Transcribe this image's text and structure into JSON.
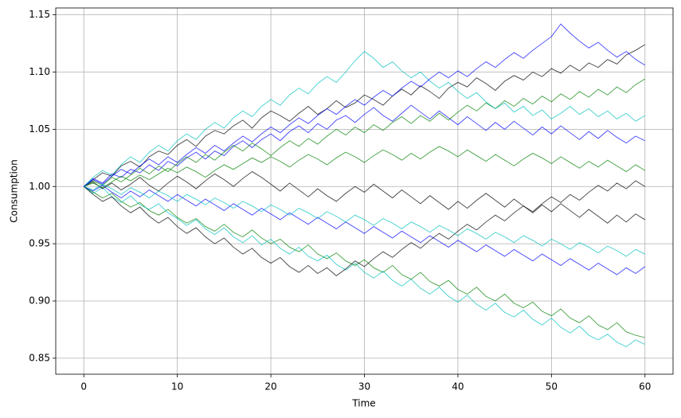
{
  "chart_data": {
    "type": "line",
    "xlabel": "Time",
    "ylabel": "Consumption",
    "x": [
      0,
      1,
      2,
      3,
      4,
      5,
      6,
      7,
      8,
      9,
      10,
      11,
      12,
      13,
      14,
      15,
      16,
      17,
      18,
      19,
      20,
      21,
      22,
      23,
      24,
      25,
      26,
      27,
      28,
      29,
      30,
      31,
      32,
      33,
      34,
      35,
      36,
      37,
      38,
      39,
      40,
      41,
      42,
      43,
      44,
      45,
      46,
      47,
      48,
      49,
      50,
      51,
      52,
      53,
      54,
      55,
      56,
      57,
      58,
      59,
      60
    ],
    "xlim": [
      -3,
      63
    ],
    "xticks": [
      0,
      10,
      20,
      30,
      40,
      50,
      60
    ],
    "ylim": [
      0.836,
      1.156
    ],
    "yticks": [
      0.85,
      {
        "value": 0.9,
        "label": "0.90"
      },
      0.95,
      {
        "value": 1.0,
        "label": "1.00"
      },
      1.05,
      {
        "value": 1.1,
        "label": "1.10"
      },
      1.15
    ],
    "grid": true,
    "series": [
      {
        "color": "#000000",
        "values": [
          1.0,
          1.006,
          1.012,
          1.009,
          1.018,
          1.022,
          1.017,
          1.026,
          1.031,
          1.028,
          1.036,
          1.041,
          1.035,
          1.044,
          1.049,
          1.046,
          1.053,
          1.058,
          1.051,
          1.06,
          1.066,
          1.062,
          1.057,
          1.064,
          1.07,
          1.063,
          1.068,
          1.075,
          1.069,
          1.073,
          1.08,
          1.076,
          1.071,
          1.079,
          1.085,
          1.08,
          1.088,
          1.083,
          1.077,
          1.086,
          1.091,
          1.087,
          1.095,
          1.09,
          1.084,
          1.092,
          1.097,
          1.093,
          1.1,
          1.096,
          1.103,
          1.099,
          1.106,
          1.101,
          1.108,
          1.104,
          1.111,
          1.107,
          1.115,
          1.119,
          1.124
        ]
      },
      {
        "color": "#008000",
        "values": [
          1.0,
          0.995,
          0.99,
          0.994,
          0.987,
          0.982,
          0.986,
          0.979,
          0.975,
          0.98,
          0.973,
          0.968,
          0.972,
          0.965,
          0.961,
          0.967,
          0.96,
          0.956,
          0.962,
          0.955,
          0.95,
          0.954,
          0.947,
          0.943,
          0.949,
          0.941,
          0.937,
          0.942,
          0.935,
          0.931,
          0.936,
          0.929,
          0.925,
          0.931,
          0.923,
          0.919,
          0.925,
          0.917,
          0.913,
          0.918,
          0.91,
          0.906,
          0.912,
          0.904,
          0.9,
          0.906,
          0.898,
          0.894,
          0.899,
          0.891,
          0.887,
          0.893,
          0.885,
          0.881,
          0.887,
          0.879,
          0.875,
          0.881,
          0.873,
          0.87,
          0.868
        ]
      },
      {
        "color": "#0000ff",
        "values": [
          1.0,
          1.007,
          1.003,
          1.011,
          1.008,
          1.015,
          1.012,
          1.019,
          1.014,
          1.022,
          1.018,
          1.025,
          1.03,
          1.024,
          1.031,
          1.027,
          1.035,
          1.04,
          1.034,
          1.041,
          1.046,
          1.04,
          1.048,
          1.053,
          1.047,
          1.055,
          1.05,
          1.058,
          1.062,
          1.056,
          1.063,
          1.069,
          1.062,
          1.057,
          1.064,
          1.071,
          1.065,
          1.059,
          1.066,
          1.06,
          1.054,
          1.061,
          1.055,
          1.049,
          1.056,
          1.05,
          1.057,
          1.051,
          1.045,
          1.052,
          1.046,
          1.053,
          1.047,
          1.041,
          1.048,
          1.042,
          1.049,
          1.043,
          1.038,
          1.044,
          1.04
        ]
      },
      {
        "color": "#00bfbf",
        "values": [
          1.0,
          0.994,
          0.999,
          0.991,
          0.986,
          0.992,
          0.984,
          0.98,
          0.985,
          0.977,
          0.972,
          0.966,
          0.971,
          0.963,
          0.958,
          0.964,
          0.956,
          0.951,
          0.957,
          0.949,
          0.954,
          0.946,
          0.941,
          0.947,
          0.939,
          0.935,
          0.94,
          0.932,
          0.927,
          0.933,
          0.925,
          0.92,
          0.926,
          0.918,
          0.913,
          0.919,
          0.911,
          0.906,
          0.912,
          0.904,
          0.899,
          0.905,
          0.897,
          0.892,
          0.898,
          0.89,
          0.886,
          0.892,
          0.884,
          0.879,
          0.885,
          0.877,
          0.872,
          0.878,
          0.87,
          0.866,
          0.871,
          0.864,
          0.86,
          0.866,
          0.862
        ]
      },
      {
        "color": "#000000",
        "values": [
          1.0,
          1.004,
          0.998,
          1.003,
          0.997,
          1.002,
          1.008,
          1.001,
          0.996,
          1.003,
          1.009,
          1.004,
          0.998,
          1.005,
          1.011,
          1.006,
          1.0,
          1.007,
          1.013,
          1.008,
          1.002,
          0.996,
          1.003,
          0.997,
          0.991,
          0.998,
          0.992,
          0.987,
          0.994,
          1.0,
          0.995,
          1.002,
          0.996,
          0.99,
          0.997,
          0.991,
          0.985,
          0.992,
          0.986,
          0.98,
          0.987,
          0.981,
          0.988,
          0.994,
          0.988,
          0.982,
          0.989,
          0.983,
          0.977,
          0.984,
          0.978,
          0.985,
          0.979,
          0.973,
          0.98,
          0.974,
          0.968,
          0.975,
          0.969,
          0.976,
          0.971
        ]
      },
      {
        "color": "#008000",
        "values": [
          1.0,
          1.005,
          1.001,
          1.008,
          1.004,
          1.01,
          1.016,
          1.011,
          1.018,
          1.013,
          1.02,
          1.026,
          1.021,
          1.028,
          1.023,
          1.03,
          1.036,
          1.031,
          1.038,
          1.033,
          1.027,
          1.034,
          1.04,
          1.035,
          1.042,
          1.037,
          1.044,
          1.05,
          1.045,
          1.052,
          1.047,
          1.054,
          1.049,
          1.056,
          1.061,
          1.055,
          1.062,
          1.057,
          1.064,
          1.058,
          1.065,
          1.071,
          1.066,
          1.073,
          1.068,
          1.075,
          1.07,
          1.077,
          1.072,
          1.079,
          1.074,
          1.081,
          1.076,
          1.083,
          1.078,
          1.085,
          1.08,
          1.087,
          1.082,
          1.089,
          1.094
        ]
      },
      {
        "color": "#0000ff",
        "values": [
          1.0,
          0.996,
          1.001,
          0.995,
          0.99,
          0.996,
          0.991,
          0.997,
          0.992,
          0.987,
          0.993,
          0.988,
          0.983,
          0.989,
          0.984,
          0.979,
          0.985,
          0.98,
          0.975,
          0.981,
          0.976,
          0.971,
          0.977,
          0.972,
          0.967,
          0.973,
          0.968,
          0.963,
          0.969,
          0.964,
          0.959,
          0.965,
          0.96,
          0.955,
          0.961,
          0.956,
          0.951,
          0.957,
          0.952,
          0.947,
          0.953,
          0.948,
          0.943,
          0.949,
          0.944,
          0.939,
          0.945,
          0.94,
          0.935,
          0.941,
          0.936,
          0.931,
          0.937,
          0.932,
          0.927,
          0.933,
          0.928,
          0.923,
          0.929,
          0.924,
          0.93
        ]
      },
      {
        "color": "#00bfbf",
        "values": [
          1.0,
          1.008,
          1.014,
          1.01,
          1.019,
          1.026,
          1.021,
          1.03,
          1.036,
          1.031,
          1.04,
          1.046,
          1.041,
          1.05,
          1.056,
          1.051,
          1.06,
          1.066,
          1.061,
          1.07,
          1.076,
          1.071,
          1.08,
          1.086,
          1.081,
          1.09,
          1.096,
          1.091,
          1.1,
          1.11,
          1.118,
          1.112,
          1.104,
          1.109,
          1.101,
          1.095,
          1.1,
          1.092,
          1.086,
          1.091,
          1.083,
          1.077,
          1.082,
          1.074,
          1.068,
          1.073,
          1.065,
          1.07,
          1.062,
          1.067,
          1.059,
          1.064,
          1.07,
          1.063,
          1.068,
          1.061,
          1.066,
          1.059,
          1.064,
          1.057,
          1.062
        ]
      },
      {
        "color": "#000000",
        "values": [
          1.0,
          0.993,
          0.987,
          0.991,
          0.983,
          0.977,
          0.982,
          0.974,
          0.968,
          0.973,
          0.965,
          0.959,
          0.964,
          0.956,
          0.95,
          0.955,
          0.947,
          0.941,
          0.946,
          0.938,
          0.933,
          0.938,
          0.93,
          0.925,
          0.931,
          0.924,
          0.929,
          0.922,
          0.928,
          0.935,
          0.93,
          0.937,
          0.943,
          0.938,
          0.945,
          0.951,
          0.946,
          0.953,
          0.959,
          0.954,
          0.961,
          0.967,
          0.962,
          0.969,
          0.975,
          0.97,
          0.977,
          0.983,
          0.978,
          0.985,
          0.991,
          0.986,
          0.993,
          0.988,
          0.995,
          1.001,
          0.996,
          1.003,
          0.998,
          1.005,
          1.0
        ]
      },
      {
        "color": "#008000",
        "values": [
          1.0,
          1.003,
          0.999,
          1.004,
          1.009,
          1.005,
          1.01,
          1.006,
          1.011,
          1.016,
          1.012,
          1.017,
          1.013,
          1.008,
          1.014,
          1.019,
          1.015,
          1.02,
          1.025,
          1.021,
          1.026,
          1.022,
          1.017,
          1.023,
          1.028,
          1.024,
          1.019,
          1.025,
          1.03,
          1.026,
          1.021,
          1.027,
          1.032,
          1.028,
          1.023,
          1.029,
          1.024,
          1.03,
          1.035,
          1.031,
          1.026,
          1.032,
          1.027,
          1.022,
          1.028,
          1.023,
          1.018,
          1.024,
          1.029,
          1.025,
          1.02,
          1.026,
          1.021,
          1.016,
          1.022,
          1.017,
          1.023,
          1.018,
          1.013,
          1.019,
          1.014
        ]
      },
      {
        "color": "#0000ff",
        "values": [
          1.0,
          1.006,
          1.002,
          1.009,
          1.015,
          1.011,
          1.018,
          1.024,
          1.019,
          1.026,
          1.021,
          1.028,
          1.034,
          1.029,
          1.036,
          1.031,
          1.038,
          1.044,
          1.039,
          1.046,
          1.052,
          1.047,
          1.054,
          1.06,
          1.055,
          1.062,
          1.068,
          1.063,
          1.07,
          1.076,
          1.071,
          1.078,
          1.084,
          1.079,
          1.086,
          1.092,
          1.087,
          1.094,
          1.1,
          1.095,
          1.101,
          1.096,
          1.103,
          1.109,
          1.104,
          1.111,
          1.117,
          1.112,
          1.119,
          1.125,
          1.131,
          1.142,
          1.134,
          1.127,
          1.121,
          1.126,
          1.119,
          1.113,
          1.118,
          1.111,
          1.106
        ]
      },
      {
        "color": "#00bfbf",
        "values": [
          1.0,
          0.997,
          1.002,
          0.998,
          0.993,
          0.999,
          0.995,
          0.99,
          0.996,
          0.992,
          0.987,
          0.993,
          0.989,
          0.984,
          0.99,
          0.986,
          0.981,
          0.987,
          0.983,
          0.978,
          0.984,
          0.98,
          0.975,
          0.981,
          0.977,
          0.972,
          0.978,
          0.974,
          0.969,
          0.975,
          0.971,
          0.966,
          0.972,
          0.968,
          0.963,
          0.969,
          0.965,
          0.96,
          0.966,
          0.962,
          0.957,
          0.963,
          0.959,
          0.954,
          0.96,
          0.956,
          0.951,
          0.957,
          0.953,
          0.948,
          0.954,
          0.95,
          0.945,
          0.951,
          0.947,
          0.942,
          0.948,
          0.944,
          0.939,
          0.945,
          0.941
        ]
      }
    ]
  }
}
